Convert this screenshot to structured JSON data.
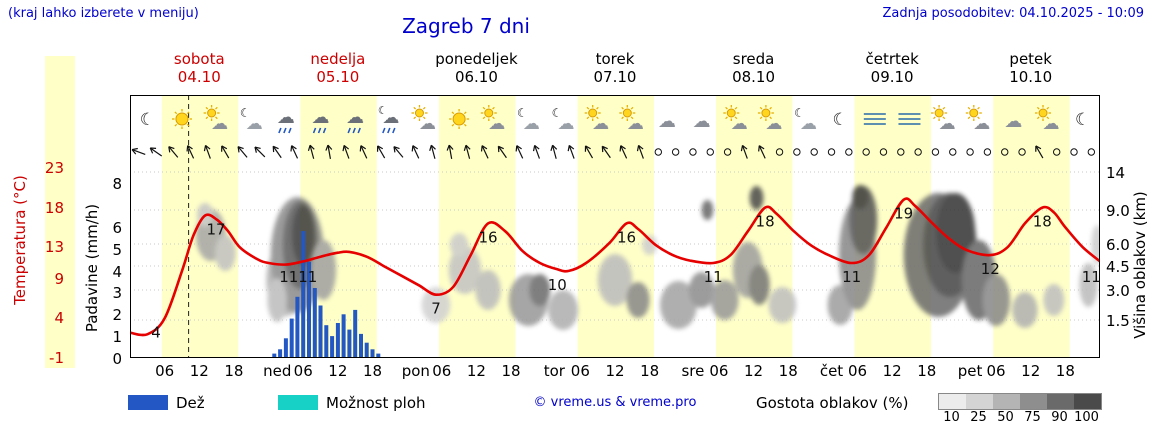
{
  "header": {
    "hint": "(kraj lahko izberete v meniju)",
    "title": "Zagreb 7 dni",
    "updated": "Zadnja posodobitev: 04.10.2025 - 10:09"
  },
  "days": [
    {
      "name": "sobota",
      "date": "04.10",
      "highlight": true
    },
    {
      "name": "nedelja",
      "date": "05.10",
      "highlight": true
    },
    {
      "name": "ponedeljek",
      "date": "06.10",
      "highlight": false
    },
    {
      "name": "torek",
      "date": "07.10",
      "highlight": false
    },
    {
      "name": "sreda",
      "date": "08.10",
      "highlight": false
    },
    {
      "name": "četrtek",
      "date": "09.10",
      "highlight": false
    },
    {
      "name": "petek",
      "date": "10.10",
      "highlight": false
    }
  ],
  "axes": {
    "temp_label": "Temperatura (°C)",
    "temp_ticks": [
      23,
      18,
      13,
      9,
      4,
      -1
    ],
    "precip_label": "Padavine (mm/h)",
    "precip_ticks": [
      8,
      6,
      5,
      4,
      3,
      2,
      1,
      0
    ],
    "cloud_label": "Višina oblakov (km)",
    "cloud_ticks": [
      "14",
      "9.0",
      "6.0",
      "4.5",
      "3.0",
      "1.5"
    ]
  },
  "xaxis": {
    "hours": [
      "06",
      "12",
      "18"
    ],
    "day_abbrevs": [
      "ned",
      "pon",
      "tor",
      "sre",
      "čet",
      "pet"
    ]
  },
  "legend": {
    "rain_label": "Dež",
    "showers_label": "Možnost ploh",
    "copyright": "© vreme.us & vreme.pro",
    "cloud_density_label": "Gostota oblakov (%)",
    "density_ticks": [
      "10",
      "25",
      "50",
      "75",
      "90",
      "100"
    ],
    "density_colors": [
      "#ececec",
      "#d4d4d4",
      "#b4b4b4",
      "#8e8e8e",
      "#6a6a6a",
      "#4a4a4a"
    ]
  },
  "colors": {
    "accent_blue": "#0000cc",
    "day_red": "#cc0000",
    "temp_line": "#e60000",
    "rain_bar": "#2257c4",
    "showers": "#17d1c6",
    "day_band": "#ffffc8",
    "strip_yellow": "#ffffc8"
  },
  "chart_data": {
    "type": "meteogram",
    "hours_total": 168,
    "temp_range": [
      -1,
      23
    ],
    "precip_range": [
      0,
      8
    ],
    "day_daylight_hours": [
      5.5,
      18.75
    ],
    "now_hour": 10.15,
    "temperature_points": [
      [
        0,
        2.2
      ],
      [
        3,
        2.0
      ],
      [
        6,
        4
      ],
      [
        9,
        10
      ],
      [
        11,
        14.5
      ],
      [
        13,
        17
      ],
      [
        15,
        16.5
      ],
      [
        17,
        15
      ],
      [
        19,
        13
      ],
      [
        22,
        11.5
      ],
      [
        24,
        11
      ],
      [
        27,
        10.8
      ],
      [
        30,
        11.2
      ],
      [
        33,
        11.8
      ],
      [
        36,
        12.3
      ],
      [
        38,
        12.4
      ],
      [
        41,
        11.8
      ],
      [
        44,
        10.6
      ],
      [
        47,
        9.4
      ],
      [
        50,
        8.2
      ],
      [
        53,
        7
      ],
      [
        56,
        8
      ],
      [
        59,
        12
      ],
      [
        62,
        16
      ],
      [
        65,
        15
      ],
      [
        68,
        12.5
      ],
      [
        71,
        11
      ],
      [
        74,
        10.2
      ],
      [
        76,
        10
      ],
      [
        79,
        11
      ],
      [
        83,
        13.5
      ],
      [
        86,
        16
      ],
      [
        88,
        15.3
      ],
      [
        91,
        13.3
      ],
      [
        94,
        12
      ],
      [
        97,
        11.3
      ],
      [
        101,
        11
      ],
      [
        104,
        12
      ],
      [
        107,
        15
      ],
      [
        110,
        18
      ],
      [
        112,
        17.2
      ],
      [
        115,
        15
      ],
      [
        118,
        13.2
      ],
      [
        121,
        12
      ],
      [
        125,
        11
      ],
      [
        128,
        12
      ],
      [
        131,
        15.5
      ],
      [
        134,
        19
      ],
      [
        136,
        18.2
      ],
      [
        139,
        16
      ],
      [
        142,
        14
      ],
      [
        145,
        12.6
      ],
      [
        149,
        12
      ],
      [
        152,
        13
      ],
      [
        155,
        16
      ],
      [
        158,
        18
      ],
      [
        160,
        17.4
      ],
      [
        162,
        15.5
      ],
      [
        165,
        13
      ],
      [
        168,
        11.2
      ]
    ],
    "temperature_labels": [
      [
        4.5,
        4
      ],
      [
        14.9,
        17
      ],
      [
        27.5,
        11
      ],
      [
        30.8,
        11
      ],
      [
        53,
        7
      ],
      [
        62,
        16
      ],
      [
        74,
        10
      ],
      [
        86,
        16
      ],
      [
        101,
        11
      ],
      [
        110,
        18
      ],
      [
        125,
        11
      ],
      [
        134,
        19
      ],
      [
        149,
        12
      ],
      [
        158,
        18
      ],
      [
        166.5,
        11
      ]
    ],
    "precipitation_bars": [
      [
        25,
        0.2
      ],
      [
        26,
        0.4
      ],
      [
        27,
        0.9
      ],
      [
        28,
        1.8
      ],
      [
        29,
        2.8
      ],
      [
        30,
        5.8
      ],
      [
        31,
        4.4
      ],
      [
        32,
        3.2
      ],
      [
        33,
        2.4
      ],
      [
        34,
        1.5
      ],
      [
        35,
        1.0
      ],
      [
        36,
        1.6
      ],
      [
        37,
        2.0
      ],
      [
        38,
        1.3
      ],
      [
        39,
        2.2
      ],
      [
        40,
        1.1
      ],
      [
        41,
        0.7
      ],
      [
        42,
        0.4
      ],
      [
        43,
        0.2
      ]
    ],
    "weather_icons": [
      "moon",
      "sun",
      "sun-cloud",
      "cloud-moon",
      "rain",
      "rain",
      "rain",
      "rain-moon",
      "sun-cloud",
      "sun",
      "sun-cloud",
      "cloud-moon",
      "cloud-moon",
      "sun-cloud",
      "sun-cloud",
      "cloud",
      "cloud",
      "sun-cloud",
      "sun-cloud",
      "cloud-moon",
      "moon",
      "fog",
      "fog",
      "sun-cloud",
      "sun-cloud",
      "cloud",
      "sun-cloud",
      "moon"
    ],
    "wind_symbols": [
      "a200",
      "a215",
      "a230",
      "a245",
      "a250",
      "a240",
      "a230",
      "a225",
      "a235",
      "a245",
      "a255",
      "a260",
      "a250",
      "a245",
      "a240",
      "a230",
      "a245",
      "a255",
      "a260",
      "a255",
      "a245",
      "a235",
      "a245",
      "a250",
      "a255",
      "a250",
      "a240",
      "a235",
      "a245",
      "a250",
      "calm",
      "calm",
      "calm",
      "calm",
      "calm",
      "a250",
      "a245",
      "calm",
      "calm",
      "calm",
      "calm",
      "calm",
      "calm",
      "calm",
      "calm",
      "calm",
      "calm",
      "calm",
      "calm",
      "calm",
      "calm",
      "calm",
      "a240",
      "calm",
      "calm",
      "calm"
    ],
    "cloud_blobs": [
      [
        14,
        140,
        2.6,
        26,
        "#a8a8a8"
      ],
      [
        16.5,
        158,
        1.8,
        18,
        "#c2c2c2"
      ],
      [
        13,
        120,
        1.4,
        12,
        "#c6c6c6"
      ],
      [
        27,
        185,
        3.4,
        36,
        "#b2b2b2"
      ],
      [
        29,
        160,
        4.6,
        58,
        "#8e8e8e"
      ],
      [
        29.5,
        150,
        3.0,
        44,
        "#5f5f5f"
      ],
      [
        30,
        140,
        1.9,
        30,
        "#3e3e3e"
      ],
      [
        33.5,
        175,
        2.2,
        30,
        "#a2a2a2"
      ],
      [
        25.5,
        205,
        1.7,
        22,
        "#bebebe"
      ],
      [
        53,
        210,
        2.5,
        18,
        "#d2d2d2"
      ],
      [
        58,
        175,
        2.8,
        24,
        "#c4c4c4"
      ],
      [
        57,
        150,
        1.6,
        12,
        "#cccccc"
      ],
      [
        62,
        195,
        2.2,
        20,
        "#bdbdbd"
      ],
      [
        69,
        205,
        3.4,
        26,
        "#9a9a9a"
      ],
      [
        71,
        195,
        1.8,
        16,
        "#6e6e6e"
      ],
      [
        75,
        215,
        2.6,
        20,
        "#b0b0b0"
      ],
      [
        84,
        185,
        3.0,
        26,
        "#bdbdbd"
      ],
      [
        88,
        205,
        2.0,
        18,
        "#8a8a8a"
      ],
      [
        90,
        150,
        1.3,
        10,
        "#cfcfcf"
      ],
      [
        95,
        210,
        3.2,
        24,
        "#a5a5a5"
      ],
      [
        99,
        195,
        2.2,
        18,
        "#8f8f8f"
      ],
      [
        100,
        115,
        1.0,
        10,
        "#6a6a6a"
      ],
      [
        103,
        205,
        2.4,
        20,
        "#9a9a9a"
      ],
      [
        107,
        175,
        2.6,
        28,
        "#a0a0a0"
      ],
      [
        109,
        190,
        1.8,
        20,
        "#787878"
      ],
      [
        108.5,
        103,
        1.2,
        12,
        "#4e4e4e"
      ],
      [
        113,
        210,
        2.4,
        18,
        "#c0c0c0"
      ],
      [
        123,
        210,
        2.2,
        20,
        "#a0a0a0"
      ],
      [
        126,
        160,
        3.2,
        55,
        "#8a8a8a"
      ],
      [
        127,
        125,
        2.4,
        34,
        "#565656"
      ],
      [
        126.5,
        102,
        1.4,
        12,
        "#3c3c3c"
      ],
      [
        140,
        160,
        6.0,
        62,
        "#6e6e6e"
      ],
      [
        142,
        150,
        4.6,
        52,
        "#4a4a4a"
      ],
      [
        143,
        138,
        3.4,
        40,
        "#383838"
      ],
      [
        147,
        185,
        3.0,
        40,
        "#6a6a6a"
      ],
      [
        150,
        205,
        2.4,
        26,
        "#8a8a8a"
      ],
      [
        155,
        215,
        2.2,
        18,
        "#b2b2b2"
      ],
      [
        160,
        205,
        1.8,
        16,
        "#c0c0c0"
      ],
      [
        166,
        190,
        1.6,
        22,
        "#bdbdbd"
      ],
      [
        167.5,
        150,
        1.0,
        20,
        "#cfcfcf"
      ]
    ]
  }
}
